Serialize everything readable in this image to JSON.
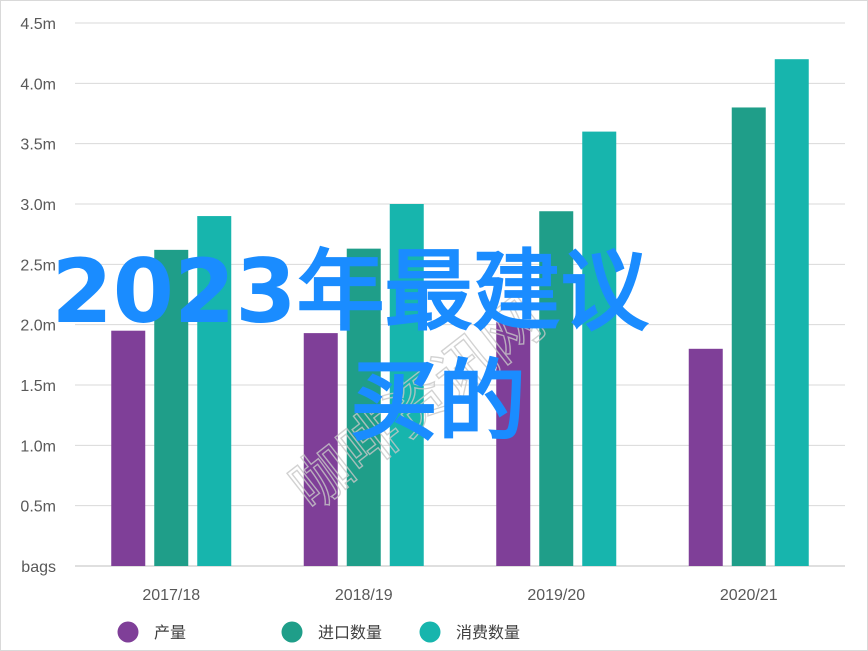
{
  "chart_data": {
    "type": "bar",
    "categories": [
      "2017/18",
      "2018/19",
      "2019/20",
      "2020/21"
    ],
    "series": [
      {
        "name": "产量",
        "color": "#7f3f98",
        "values": [
          1.95,
          1.93,
          2.02,
          1.8
        ]
      },
      {
        "name": "进口数量",
        "color": "#1f9e89",
        "values": [
          2.62,
          2.63,
          2.94,
          3.8
        ]
      },
      {
        "name": "消费数量",
        "color": "#17b5ad",
        "values": [
          2.9,
          3.0,
          3.6,
          4.2
        ]
      }
    ],
    "yticks": [
      {
        "value": 0,
        "label": "bags"
      },
      {
        "value": 0.5,
        "label": "0.5m"
      },
      {
        "value": 1.0,
        "label": "1.0m"
      },
      {
        "value": 1.5,
        "label": "1.5m"
      },
      {
        "value": 2.0,
        "label": "2.0m"
      },
      {
        "value": 2.5,
        "label": "2.5m"
      },
      {
        "value": 3.0,
        "label": "3.0m"
      },
      {
        "value": 3.5,
        "label": "3.5m"
      },
      {
        "value": 4.0,
        "label": "4.0m"
      },
      {
        "value": 4.5,
        "label": "4.5m"
      }
    ],
    "ylim": [
      0,
      4.5
    ],
    "grid": true,
    "legend_position": "bottom",
    "title": "",
    "xlabel": "",
    "ylabel": ""
  },
  "overlay": {
    "title_line1": "2023年最建议",
    "title_line2": "买的",
    "watermark": "咖啡资讯网"
  }
}
